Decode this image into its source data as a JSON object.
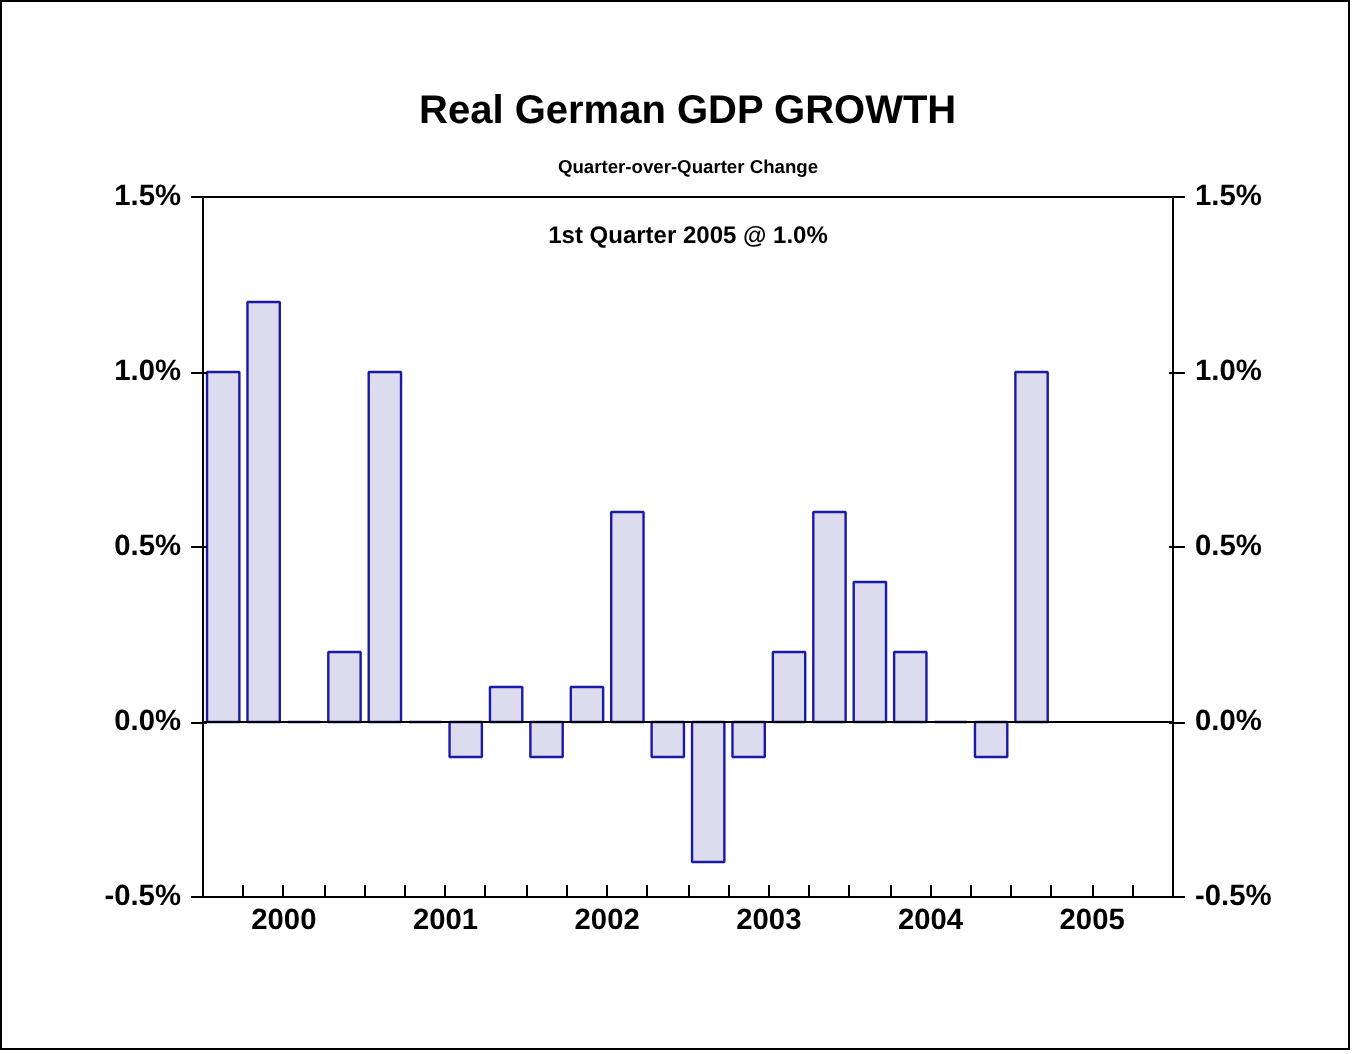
{
  "chart_data": {
    "type": "bar",
    "title": "Real German GDP GROWTH",
    "subtitle": "Quarter-over-Quarter Change",
    "annotations": [
      "1st Quarter 2005 @ 1.0%"
    ],
    "x": [
      2000.125,
      2000.375,
      2000.625,
      2000.875,
      2001.125,
      2001.375,
      2001.625,
      2001.875,
      2002.125,
      2002.375,
      2002.625,
      2002.875,
      2003.125,
      2003.375,
      2003.625,
      2003.875,
      2004.125,
      2004.375,
      2004.625,
      2004.875,
      2005.125
    ],
    "series": [
      {
        "color": "#1a1aa8",
        "values": [
          1.0,
          1.2,
          0.0,
          0.2,
          1.0,
          0.0,
          -0.1,
          0.1,
          -0.1,
          0.1,
          0.6,
          -0.1,
          -0.4,
          -0.1,
          0.2,
          0.6,
          0.4,
          0.2,
          0.0,
          -0.1,
          1.0
        ]
      }
    ],
    "xlim": [
      2000,
      2006
    ],
    "xticks": [
      {
        "value": 2000,
        "label": null
      },
      {
        "value": 2000.25,
        "label": null
      },
      {
        "value": 2000.5,
        "label": "2000"
      },
      {
        "value": 2000.75,
        "label": null
      },
      {
        "value": 2001,
        "label": null
      },
      {
        "value": 2001.25,
        "label": null
      },
      {
        "value": 2001.5,
        "label": "2001"
      },
      {
        "value": 2001.75,
        "label": null
      },
      {
        "value": 2002,
        "label": null
      },
      {
        "value": 2002.25,
        "label": null
      },
      {
        "value": 2002.5,
        "label": "2002"
      },
      {
        "value": 2002.75,
        "label": null
      },
      {
        "value": 2003,
        "label": null
      },
      {
        "value": 2003.25,
        "label": null
      },
      {
        "value": 2003.5,
        "label": "2003"
      },
      {
        "value": 2003.75,
        "label": null
      },
      {
        "value": 2004,
        "label": null
      },
      {
        "value": 2004.25,
        "label": null
      },
      {
        "value": 2004.5,
        "label": "2004"
      },
      {
        "value": 2004.75,
        "label": null
      },
      {
        "value": 2005,
        "label": null
      },
      {
        "value": 2005.25,
        "label": null
      },
      {
        "value": 2005.5,
        "label": "2005"
      },
      {
        "value": 2005.75,
        "label": null
      },
      {
        "value": 2006,
        "label": null
      }
    ],
    "ylim": [
      -0.5,
      1.5
    ],
    "yticks": [
      {
        "value": -0.5,
        "label": "-0.5%"
      },
      {
        "value": 0,
        "label": "0.0%"
      },
      {
        "value": 0.5,
        "label": "0.5%"
      },
      {
        "value": 1.0,
        "label": "1.0%"
      },
      {
        "value": 1.5,
        "label": "1.5%"
      }
    ],
    "y2lim": [
      -0.5,
      1.5
    ],
    "y2ticks": [
      {
        "value": -0.5,
        "label": "-0.5%"
      },
      {
        "value": 0,
        "label": "0.0%"
      },
      {
        "value": 0.5,
        "label": "0.5%"
      },
      {
        "value": 1.0,
        "label": "1.0%"
      },
      {
        "value": 1.5,
        "label": "1.5%"
      }
    ],
    "ref_lines": [
      {
        "axis": "y",
        "value": 0,
        "color": "#000000"
      }
    ],
    "grid": false
  }
}
